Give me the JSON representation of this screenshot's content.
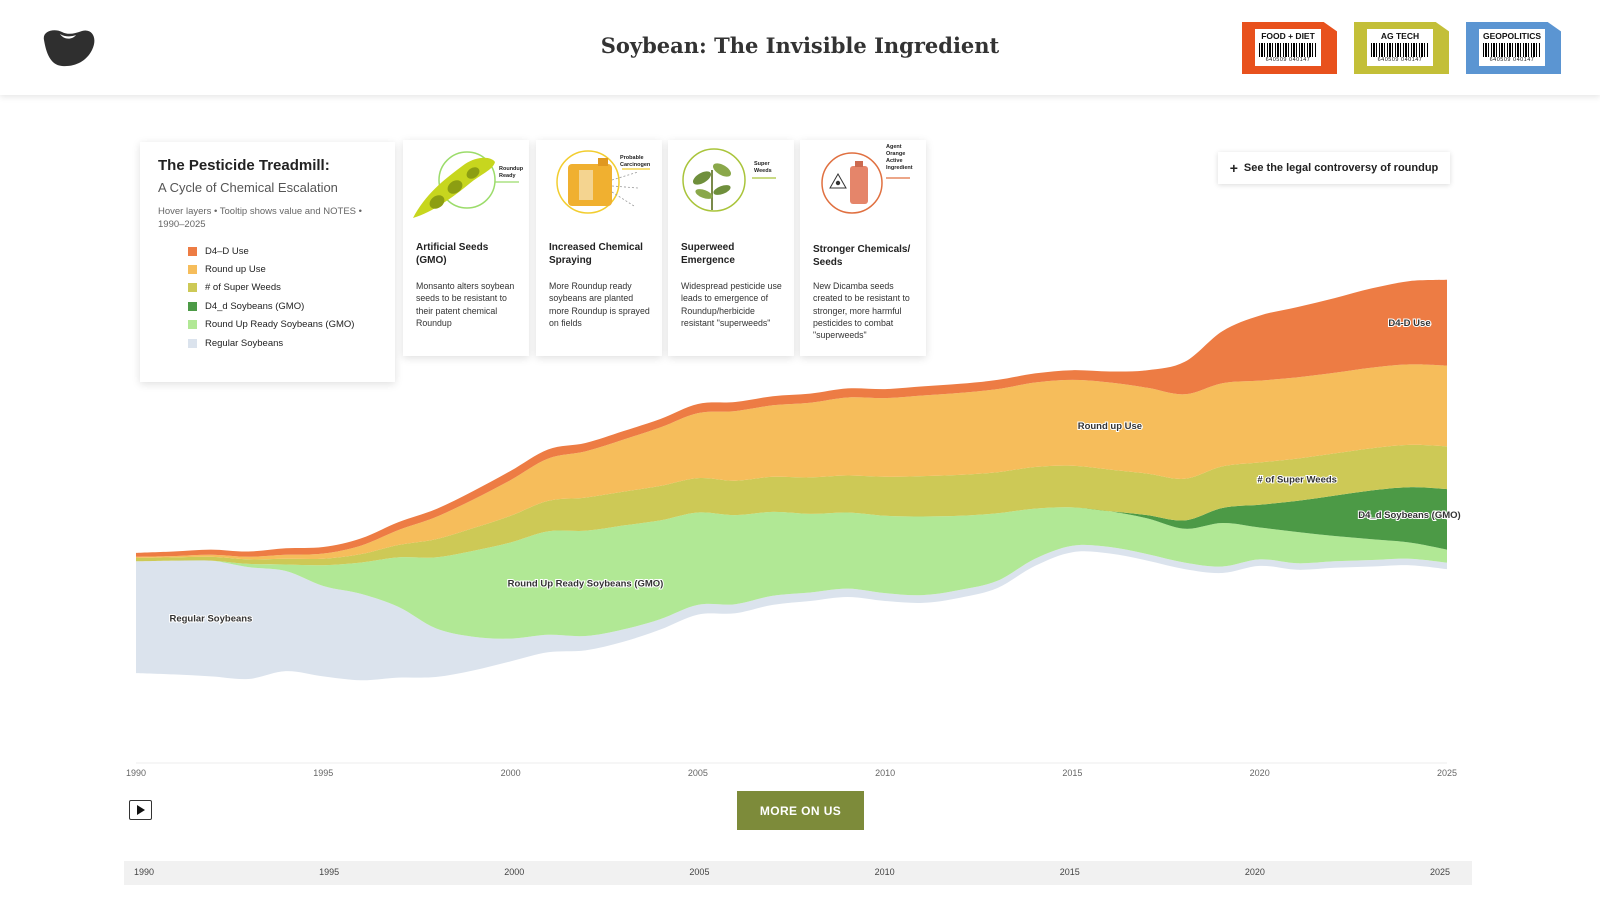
{
  "header": {
    "title": "Soybean: The Invisible Ingredient",
    "tags": [
      {
        "label": "FOOD + DIET",
        "code": "640509 040147",
        "color": "#e8511d"
      },
      {
        "label": "AG TECH",
        "code": "640509 040147",
        "color": "#c3bf38"
      },
      {
        "label": "GEOPOLITICS",
        "code": "640509 040147",
        "color": "#5b95d2"
      }
    ]
  },
  "legend": {
    "title": "The Pesticide Treadmill:",
    "subtitle": "A Cycle of Chemical Escalation",
    "hint": "Hover layers • Tooltip shows value and NOTES • 1990–2025",
    "items": [
      {
        "label": "D4–D Use",
        "color": "#ed7c44"
      },
      {
        "label": "Round up Use",
        "color": "#f6bd5b"
      },
      {
        "label": "# of Super Weeds",
        "color": "#cdc956"
      },
      {
        "label": "D4_d Soybeans (GMO)",
        "color": "#4c9a46"
      },
      {
        "label": "Round Up Ready Soybeans (GMO)",
        "color": "#b1e895"
      },
      {
        "label": "Regular Soybeans",
        "color": "#dbe3ed"
      }
    ]
  },
  "steps": [
    {
      "title": "Artificial Seeds (GMO)",
      "desc": "Monsanto alters soybean seeds to be resistant to their patent chemical Roundup",
      "figure": "soybean-pod-icon",
      "figure_label": [
        "Roundup",
        "Ready"
      ]
    },
    {
      "title": "Increased Chemical Spraying",
      "desc": "More Roundup ready soybeans are planted more Roundup is sprayed on fields",
      "figure": "herbicide-jug-icon",
      "figure_label": [
        "Probable",
        "Carcinogen"
      ]
    },
    {
      "title": "Superweed Emergence",
      "desc": "Widespread pesticide use leads to emergence of Roundup/herbicide resistant \"superweeds\"",
      "figure": "weed-plant-icon",
      "figure_label": [
        "Super",
        "Weeds"
      ]
    },
    {
      "title": "Stronger Chemicals/ Seeds",
      "desc": "New Dicamba seeds created to be resistant to stronger, more harmful pesticides to combat \"superweeds\"",
      "figure": "chemical-bottle-icon",
      "figure_label": [
        "Agent",
        "Orange",
        "Active",
        "Ingredient"
      ]
    }
  ],
  "legal_button": {
    "icon": "plus-icon",
    "label": "See the legal controversy of roundup"
  },
  "controls": {
    "play_icon": "play-icon",
    "more_label": "MORE ON US"
  },
  "slider": {
    "ticks": [
      "1990",
      "1995",
      "2000",
      "2005",
      "2010",
      "2015",
      "2020",
      "2025"
    ]
  },
  "chart_data": {
    "type": "area",
    "subtype": "streamgraph",
    "title": "The Pesticide Treadmill: A Cycle of Chemical Escalation",
    "xlabel": "",
    "ylabel": "",
    "xlim": [
      1990,
      2025
    ],
    "x_ticks": [
      1990,
      1995,
      2000,
      2005,
      2010,
      2015,
      2020,
      2025
    ],
    "x": [
      1990,
      1991,
      1992,
      1993,
      1994,
      1995,
      1996,
      1997,
      1998,
      1999,
      2000,
      2001,
      2002,
      2003,
      2004,
      2005,
      2006,
      2007,
      2008,
      2009,
      2010,
      2011,
      2012,
      2013,
      2014,
      2015,
      2016,
      2017,
      2018,
      2019,
      2020,
      2021,
      2022,
      2023,
      2024,
      2025
    ],
    "baseline": [
      -1.74,
      -1.76,
      -1.79,
      -1.83,
      -1.71,
      -1.79,
      -1.85,
      -1.81,
      -1.8,
      -1.7,
      -1.56,
      -1.42,
      -1.39,
      -1.26,
      -1.07,
      -0.84,
      -0.82,
      -0.69,
      -0.63,
      -0.57,
      -0.63,
      -0.66,
      -0.58,
      -0.43,
      -0.09,
      0.12,
      0.1,
      -0.01,
      -0.14,
      -0.2,
      -0.09,
      -0.15,
      -0.12,
      -0.1,
      -0.08,
      -0.14
    ],
    "series": [
      {
        "name": "Regular Soybeans",
        "color": "#dbe3ed",
        "label": "Regular Soybeans",
        "values": [
          1.72,
          1.75,
          1.78,
          1.72,
          1.54,
          1.39,
          1.33,
          1.09,
          0.75,
          0.52,
          0.35,
          0.27,
          0.22,
          0.19,
          0.16,
          0.15,
          0.14,
          0.14,
          0.13,
          0.13,
          0.12,
          0.12,
          0.12,
          0.11,
          0.11,
          0.1,
          0.1,
          0.1,
          0.1,
          0.1,
          0.1,
          0.1,
          0.1,
          0.1,
          0.1,
          0.1
        ]
      },
      {
        "name": "Round Up Ready Soybeans (GMO)",
        "color": "#b1e895",
        "label": "Round Up Ready Soybeans (GMO)",
        "values": [
          0,
          0,
          0,
          0.05,
          0.1,
          0.32,
          0.48,
          0.76,
          1.09,
          1.32,
          1.48,
          1.59,
          1.62,
          1.6,
          1.52,
          1.42,
          1.37,
          1.29,
          1.21,
          1.17,
          1.19,
          1.21,
          1.14,
          1.04,
          0.77,
          0.59,
          0.55,
          0.55,
          0.52,
          0.67,
          0.49,
          0.48,
          0.39,
          0.32,
          0.25,
          0.2
        ]
      },
      {
        "name": "D4_d Soybeans (GMO)",
        "color": "#4c9a46",
        "label": "D4_d Soybeans (GMO)",
        "values": [
          0,
          0,
          0,
          0,
          0,
          0,
          0,
          0,
          0,
          0,
          0,
          0,
          0,
          0,
          0,
          0,
          0,
          0,
          0,
          0,
          0,
          0,
          0,
          0,
          0,
          0,
          0,
          0.05,
          0.13,
          0.23,
          0.35,
          0.48,
          0.62,
          0.75,
          0.85,
          0.93
        ]
      },
      {
        "name": "# of Super Weeds",
        "color": "#cdc956",
        "label": "# of Super Weeds",
        "values": [
          0.05,
          0.05,
          0.06,
          0.07,
          0.09,
          0.1,
          0.13,
          0.19,
          0.28,
          0.35,
          0.41,
          0.47,
          0.51,
          0.52,
          0.53,
          0.53,
          0.53,
          0.54,
          0.56,
          0.57,
          0.6,
          0.62,
          0.63,
          0.63,
          0.64,
          0.64,
          0.64,
          0.64,
          0.64,
          0.64,
          0.65,
          0.65,
          0.65,
          0.65,
          0.65,
          0.66
        ]
      },
      {
        "name": "Round up Use",
        "color": "#f6bd5b",
        "label": "Round up Use",
        "values": [
          0.02,
          0.02,
          0.03,
          0.04,
          0.06,
          0.08,
          0.13,
          0.23,
          0.34,
          0.44,
          0.55,
          0.65,
          0.71,
          0.8,
          0.9,
          1.0,
          1.07,
          1.1,
          1.15,
          1.2,
          1.21,
          1.24,
          1.26,
          1.28,
          1.3,
          1.32,
          1.34,
          1.32,
          1.3,
          1.28,
          1.26,
          1.25,
          1.24,
          1.24,
          1.24,
          1.24
        ]
      },
      {
        "name": "D4–D Use",
        "color": "#ed7c44",
        "label": "D4-D Use",
        "values": [
          0.06,
          0.07,
          0.08,
          0.08,
          0.1,
          0.1,
          0.11,
          0.12,
          0.12,
          0.13,
          0.14,
          0.14,
          0.13,
          0.13,
          0.13,
          0.14,
          0.14,
          0.14,
          0.14,
          0.14,
          0.14,
          0.14,
          0.14,
          0.14,
          0.14,
          0.15,
          0.17,
          0.27,
          0.5,
          0.8,
          1.0,
          1.08,
          1.15,
          1.22,
          1.28,
          1.32
        ]
      }
    ]
  }
}
